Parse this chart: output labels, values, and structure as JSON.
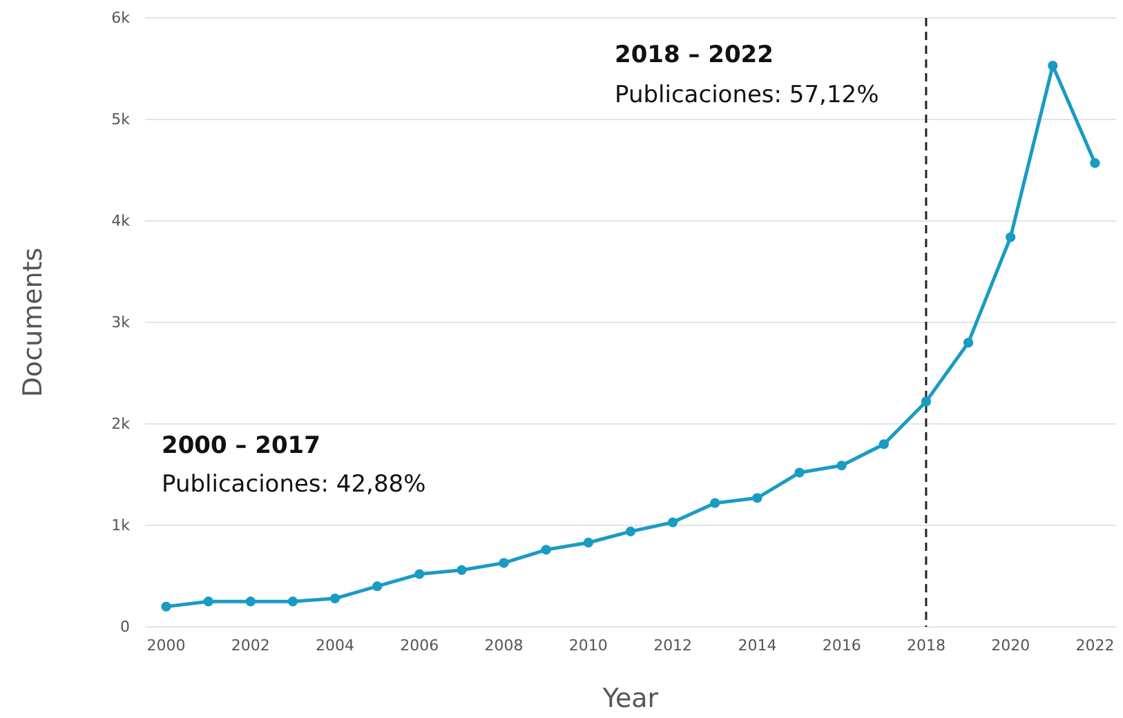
{
  "chart_data": {
    "type": "line",
    "xlabel": "Year",
    "ylabel": "Documents",
    "x": [
      2000,
      2001,
      2002,
      2003,
      2004,
      2005,
      2006,
      2007,
      2008,
      2009,
      2010,
      2011,
      2012,
      2013,
      2014,
      2015,
      2016,
      2017,
      2018,
      2019,
      2020,
      2021,
      2022
    ],
    "series": [
      {
        "color": "#1a9bc4",
        "values": [
          200,
          250,
          250,
          250,
          280,
          400,
          520,
          560,
          630,
          760,
          830,
          940,
          1030,
          1220,
          1270,
          1520,
          1590,
          1800,
          2220,
          2800,
          3840,
          5530,
          4570
        ]
      }
    ],
    "xlim": [
      1999.5,
      2022.5
    ],
    "xticks": [
      2000,
      2002,
      2004,
      2006,
      2008,
      2010,
      2012,
      2014,
      2016,
      2018,
      2020,
      2022
    ],
    "ylim": [
      0,
      6000
    ],
    "yticks": [
      {
        "value": 0,
        "label": "0"
      },
      {
        "value": 1000,
        "label": "1k"
      },
      {
        "value": 2000,
        "label": "2k"
      },
      {
        "value": 3000,
        "label": "3k"
      },
      {
        "value": 4000,
        "label": "4k"
      },
      {
        "value": 5000,
        "label": "5k"
      },
      {
        "value": 6000,
        "label": "6k"
      }
    ],
    "grid": "y",
    "marker": "circle",
    "line_style": "solid",
    "ref_lines": [
      {
        "axis": "x",
        "value": 2018,
        "color": "#222222",
        "line_style": "dashed"
      }
    ],
    "annotations": [
      "2000 – 2017",
      "Publicaciones: 42,88%",
      "2018 – 2022",
      "Publicaciones: 57,12%"
    ]
  }
}
